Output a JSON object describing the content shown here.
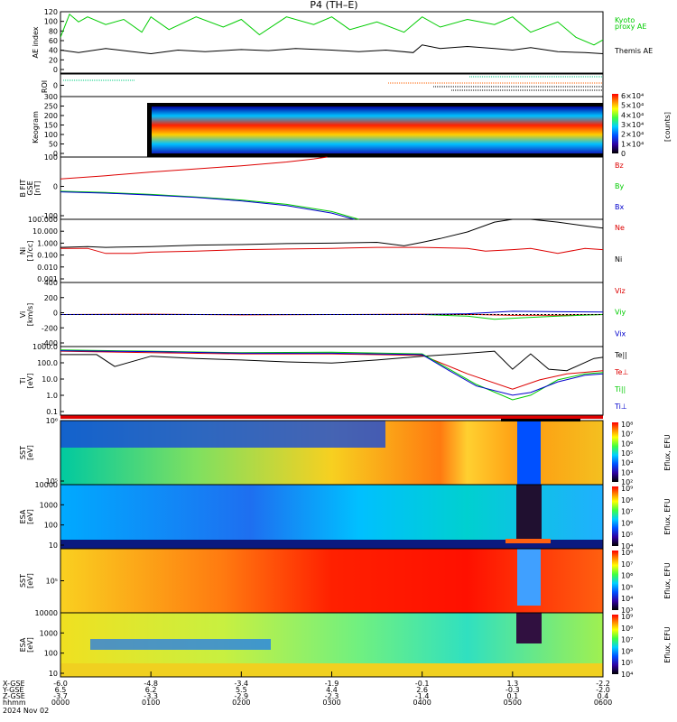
{
  "chart_data": {
    "type": "line",
    "title": "P4  (TH–E)",
    "date_label": "2024 Nov 02",
    "time_label_rows": [
      "X-GSE",
      "Y-GSE",
      "Z-GSE",
      "hhmm"
    ],
    "time_ticks": [
      {
        "x": "-6.0",
        "y": "6.5",
        "z": "-3.7",
        "t": "0000"
      },
      {
        "x": "-4.8",
        "y": "6.2",
        "z": "-3.3",
        "t": "0100"
      },
      {
        "x": "-3.4",
        "y": "5.5",
        "z": "-2.9",
        "t": "0200"
      },
      {
        "x": "-1.9",
        "y": "4.4",
        "z": "-2.3",
        "t": "0300"
      },
      {
        "x": "-0.1",
        "y": "2.6",
        "z": "-1.4",
        "t": "0400"
      },
      {
        "x": "1.3",
        "y": "-0.3",
        "z": "0.1",
        "t": "0500"
      },
      {
        "x": "-2.2",
        "y": "-2.0",
        "z": "0.4",
        "t": "0600"
      }
    ],
    "panels": [
      {
        "name": "ae",
        "ylabel": "AE index",
        "yticks": [
          "120",
          "100",
          "80",
          "60",
          "40",
          "20",
          "0"
        ],
        "ylim": [
          0,
          120
        ],
        "series": [
          {
            "name": "Kyoto\nproxy AE",
            "color": "#00cc00",
            "x": [
              0,
              0.1,
              0.2,
              0.3,
              0.5,
              0.7,
              0.9,
              1.0,
              1.2,
              1.5,
              1.8,
              2.0,
              2.2,
              2.5,
              2.8,
              3.0,
              3.2,
              3.5,
              3.8,
              4.0,
              4.2,
              4.5,
              4.8,
              5.0,
              5.2,
              5.5,
              5.7,
              5.9,
              6.0
            ],
            "y": [
              70,
              115,
              100,
              110,
              95,
              105,
              80,
              110,
              85,
              110,
              90,
              105,
              75,
              110,
              95,
              110,
              85,
              100,
              80,
              110,
              90,
              105,
              95,
              110,
              80,
              100,
              70,
              55,
              65
            ]
          },
          {
            "name": "Themis AE",
            "color": "#000000",
            "x": [
              0,
              0.2,
              0.5,
              0.8,
              1.0,
              1.3,
              1.6,
              2.0,
              2.3,
              2.6,
              3.0,
              3.3,
              3.6,
              3.9,
              4.0,
              4.2,
              4.5,
              4.8,
              5.0,
              5.2,
              5.5,
              5.8,
              6.0
            ],
            "y": [
              45,
              40,
              48,
              42,
              38,
              45,
              42,
              46,
              44,
              48,
              45,
              42,
              45,
              40,
              55,
              48,
              52,
              48,
              45,
              50,
              42,
              40,
              38
            ]
          }
        ]
      },
      {
        "name": "roi",
        "ylabel": "ROI",
        "yticks": [
          "0"
        ]
      },
      {
        "name": "keogram",
        "ylabel": "Keogram",
        "yticks": [
          "300",
          "250",
          "200",
          "150",
          "100",
          "50",
          "0"
        ],
        "colorbar_ticks": [
          "6×10⁴",
          "5×10⁴",
          "4×10⁴",
          "3×10⁴",
          "2×10⁴",
          "1×10⁴",
          "0"
        ],
        "colorbar_label": "[counts]"
      },
      {
        "name": "bfield",
        "ylabel": "B FIT\nGSE\n[nT]",
        "yticks": [
          "100",
          "0",
          "-100"
        ],
        "ylim": [
          -100,
          100
        ],
        "series": [
          {
            "name": "Bz",
            "color": "#dd0000",
            "x": [
              0,
              0.5,
              1.0,
              1.5,
              2.0,
              2.5,
              2.8,
              2.95
            ],
            "y": [
              30,
              40,
              52,
              62,
              72,
              84,
              94,
              100
            ]
          },
          {
            "name": "By",
            "color": "#00cc00",
            "x": [
              0,
              0.5,
              1.0,
              1.5,
              2.0,
              2.5,
              3.0,
              3.3
            ],
            "y": [
              -10,
              -14,
              -20,
              -28,
              -38,
              -52,
              -75,
              -100
            ]
          },
          {
            "name": "Bx",
            "color": "#0000cc",
            "x": [
              0,
              0.5,
              1.0,
              1.5,
              2.0,
              2.5,
              3.0,
              3.25
            ],
            "y": [
              -12,
              -16,
              -22,
              -30,
              -41,
              -56,
              -80,
              -100
            ]
          }
        ]
      },
      {
        "name": "density",
        "ylabel": "Ni\n[1/cc]",
        "yticks": [
          "100.000",
          "10.000",
          "1.000",
          "0.100",
          "0.010",
          "0.001"
        ],
        "ylim": [
          0.001,
          100
        ],
        "scale": "log",
        "series": [
          {
            "name": "Ne",
            "color": "#dd0000",
            "x": [
              0,
              0.3,
              0.5,
              0.8,
              1.0,
              1.5,
              2.0,
              2.5,
              3.0,
              3.5,
              4.0,
              4.5,
              4.7,
              5.0,
              5.2,
              5.5,
              5.8,
              6.0
            ],
            "y": [
              0.5,
              0.5,
              0.2,
              0.2,
              0.25,
              0.3,
              0.4,
              0.45,
              0.5,
              0.6,
              0.6,
              0.5,
              0.3,
              0.4,
              0.5,
              0.2,
              0.5,
              0.4
            ]
          },
          {
            "name": "Ni",
            "color": "#000000",
            "x": [
              0,
              0.3,
              0.5,
              1.0,
              1.5,
              2.0,
              2.5,
              3.0,
              3.5,
              3.8,
              4.0,
              4.2,
              4.5,
              4.8,
              5.0,
              5.2,
              5.5,
              5.8,
              6.0
            ],
            "y": [
              0.6,
              0.7,
              0.6,
              0.7,
              0.9,
              1.0,
              1.2,
              1.3,
              1.5,
              0.8,
              1.5,
              3,
              10,
              60,
              100,
              100,
              60,
              30,
              20
            ]
          }
        ]
      },
      {
        "name": "velocity",
        "ylabel": "Vi\n[km/s]",
        "yticks": [
          "400",
          "200",
          "0",
          "-200",
          "-400"
        ],
        "ylim": [
          -400,
          400
        ],
        "series": [
          {
            "name": "Viz",
            "color": "#dd0000",
            "x": [
              0,
              1,
              2,
              3,
              4,
              4.6,
              5.0,
              5.5,
              6.0
            ],
            "y": [
              0,
              4,
              -4,
              0,
              4,
              0,
              -10,
              -8,
              0
            ]
          },
          {
            "name": "Viy",
            "color": "#00cc00",
            "x": [
              0,
              1,
              2,
              3,
              4,
              4.5,
              4.8,
              5.1,
              5.5,
              6.0
            ],
            "y": [
              0,
              0,
              0,
              0,
              0,
              -20,
              -60,
              -40,
              -20,
              0
            ]
          },
          {
            "name": "Vix",
            "color": "#0000cc",
            "x": [
              0,
              1,
              2,
              3,
              4,
              4.5,
              5.0,
              5.5,
              6.0
            ],
            "y": [
              0,
              0,
              0,
              0,
              0,
              10,
              40,
              35,
              30
            ]
          }
        ]
      },
      {
        "name": "temperature",
        "ylabel": "Ti\n[eV]",
        "yticks": [
          "1000.0",
          "100.0",
          "10.0",
          "1.0",
          "0.1"
        ],
        "ylim": [
          0.1,
          3000
        ],
        "scale": "log",
        "series": [
          {
            "name": "Te||",
            "color": "#000000",
            "x": [
              0,
              0.4,
              0.6,
              1.0,
              1.5,
              2.0,
              2.5,
              3.0,
              3.5,
              4.0,
              4.4,
              4.8,
              5.0,
              5.2,
              5.4,
              5.6,
              5.9,
              6.0
            ],
            "y": [
              900,
              900,
              150,
              700,
              500,
              400,
              300,
              250,
              400,
              700,
              1000,
              1500,
              100,
              1000,
              100,
              80,
              500,
              600
            ]
          },
          {
            "name": "Te⊥",
            "color": "#dd0000",
            "x": [
              0,
              1,
              2,
              3,
              4,
              4.5,
              5.0,
              5.3,
              5.6,
              6.0
            ],
            "y": [
              1500,
              1200,
              1000,
              1000,
              800,
              50,
              5,
              20,
              50,
              80
            ]
          },
          {
            "name": "Ti||",
            "color": "#00cc00",
            "x": [
              0,
              1,
              2,
              3,
              4,
              4.3,
              4.6,
              5.0,
              5.2,
              5.5,
              5.8,
              6.0
            ],
            "y": [
              1800,
              1500,
              1200,
              1300,
              1000,
              100,
              10,
              1,
              2,
              20,
              50,
              60
            ]
          },
          {
            "name": "Ti⊥",
            "color": "#0000cc",
            "x": [
              0,
              1,
              2,
              3,
              4,
              4.3,
              4.6,
              5.0,
              5.2,
              5.5,
              5.8,
              6.0
            ],
            "y": [
              1600,
              1400,
              1100,
              1100,
              900,
              80,
              8,
              2,
              3,
              15,
              40,
              50
            ]
          }
        ]
      },
      {
        "name": "sst_e",
        "ylabel": "SST\n[eV]",
        "yticks": [
          "10⁶",
          "10⁵"
        ],
        "colorbar_ticks": [
          "10⁸",
          "10⁷",
          "10⁶",
          "10⁵",
          "10⁴",
          "10³",
          "10²"
        ],
        "colorbar_label": "Eflux, EFU"
      },
      {
        "name": "esa_e",
        "ylabel": "ESA\n[eV]",
        "yticks": [
          "10000",
          "1000",
          "100",
          "10"
        ],
        "colorbar_ticks": [
          "10⁹",
          "10⁸",
          "10⁷",
          "10⁶",
          "10⁵",
          "10⁴"
        ],
        "colorbar_label": "Eflux, EFU"
      },
      {
        "name": "sst_i",
        "ylabel": "SST\n[eV]",
        "yticks": [
          "10⁵"
        ],
        "colorbar_ticks": [
          "10⁸",
          "10⁷",
          "10⁶",
          "10⁵",
          "10⁴",
          "10³"
        ],
        "colorbar_label": "Eflux, EFU"
      },
      {
        "name": "esa_i",
        "ylabel": "ESA\n[eV]",
        "yticks": [
          "10000",
          "1000",
          "100",
          "10"
        ],
        "colorbar_ticks": [
          "10⁹",
          "10⁸",
          "10⁷",
          "10⁶",
          "10⁵",
          "10⁴"
        ],
        "colorbar_label": "Eflux, EFU"
      }
    ]
  }
}
